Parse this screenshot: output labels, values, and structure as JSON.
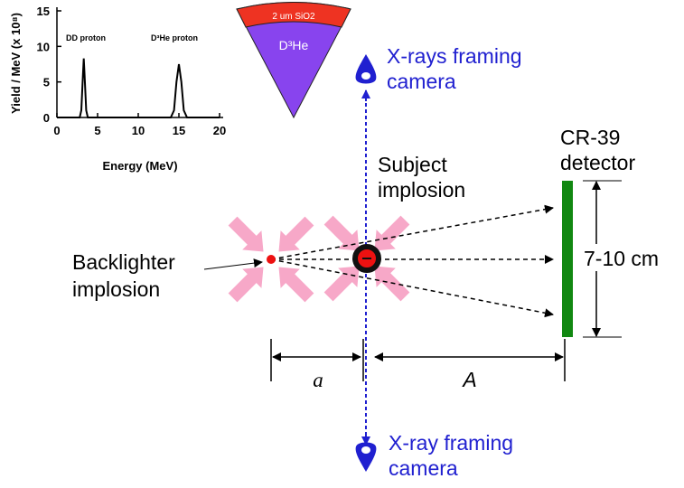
{
  "inset_chart": {
    "type": "line",
    "xlabel": "Energy (MeV)",
    "ylabel": "Yield / MeV (x 10⁸)",
    "xlim": [
      0,
      20
    ],
    "ylim": [
      0,
      15
    ],
    "xticks": [
      0,
      5,
      10,
      15,
      20
    ],
    "yticks": [
      0,
      5,
      10,
      15
    ],
    "x": [
      0,
      2.8,
      3.0,
      3.2,
      3.3,
      3.4,
      3.6,
      3.8,
      14,
      14.4,
      14.7,
      15,
      15.3,
      15.6,
      16,
      20
    ],
    "values": [
      0,
      0,
      1,
      6,
      8.3,
      6,
      1,
      0,
      0,
      1,
      5,
      7.5,
      5,
      1,
      0,
      0
    ],
    "color": "#000000",
    "annotations": [
      "DD proton",
      "D³He proton"
    ]
  },
  "target": {
    "shell": "2 um SiO2",
    "fill": "D³He"
  },
  "labels": {
    "top_camera": [
      "X-rays framing",
      "camera"
    ],
    "bottom_camera": [
      "X-ray framing",
      "camera"
    ],
    "detector": [
      "CR-39",
      "detector"
    ],
    "subject": [
      "Subject",
      "implosion"
    ],
    "backlighter": [
      "Backlighter",
      "implosion"
    ],
    "detector_size": "7-10 cm",
    "short_distance": "a",
    "long_distance": "A"
  }
}
